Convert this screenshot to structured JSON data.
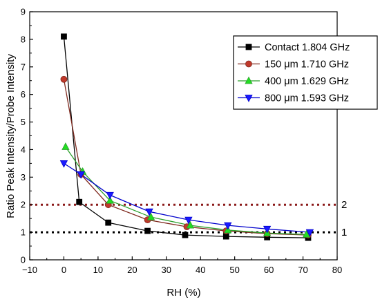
{
  "chart_data": {
    "type": "line",
    "title": "",
    "xlabel": "RH (%)",
    "ylabel": "Ratio Peak Intensity/Probe Intensity",
    "xlim": [
      -10,
      80
    ],
    "ylim": [
      0,
      9
    ],
    "xticks": [
      -10,
      0,
      10,
      20,
      30,
      40,
      50,
      60,
      70,
      80
    ],
    "yticks": [
      0,
      1,
      2,
      3,
      4,
      5,
      6,
      7,
      8,
      9
    ],
    "legend_position": "top-right",
    "series": [
      {
        "name": "Contact 1.804 GHz",
        "color": "#000000",
        "fill": "#000000",
        "marker": "square",
        "x": [
          0,
          4.5,
          13,
          24.5,
          35.5,
          47.5,
          59.5,
          71.5
        ],
        "y": [
          8.1,
          2.1,
          1.35,
          1.05,
          0.9,
          0.85,
          0.82,
          0.8
        ]
      },
      {
        "name": "150 μm 1.710 GHz",
        "color": "#7f2a1f",
        "fill": "#c0392b",
        "marker": "circle",
        "x": [
          0,
          5,
          13,
          24.5,
          36,
          47.5,
          59.5,
          71.5
        ],
        "y": [
          6.55,
          3.1,
          2.0,
          1.45,
          1.2,
          1.05,
          0.95,
          0.9
        ]
      },
      {
        "name": "400 μm 1.629 GHz",
        "color": "#2ca02c",
        "fill": "#22dd22",
        "marker": "triangle-up",
        "x": [
          0.5,
          5.5,
          13.5,
          25.5,
          37,
          48,
          59.5,
          71
        ],
        "y": [
          4.1,
          3.2,
          2.15,
          1.55,
          1.25,
          1.08,
          0.97,
          0.92
        ]
      },
      {
        "name": "800 μm 1.593 GHz",
        "color": "#0000cc",
        "fill": "#1a1aff",
        "marker": "triangle-down",
        "x": [
          0,
          5,
          13.5,
          25,
          36.5,
          48,
          59.5,
          72
        ],
        "y": [
          3.5,
          3.1,
          2.35,
          1.75,
          1.45,
          1.25,
          1.12,
          1.0
        ]
      }
    ],
    "reference_lines": [
      {
        "y": 2,
        "label": "2",
        "color": "#8b1a1a"
      },
      {
        "y": 1,
        "label": "1",
        "color": "#000000"
      }
    ]
  }
}
